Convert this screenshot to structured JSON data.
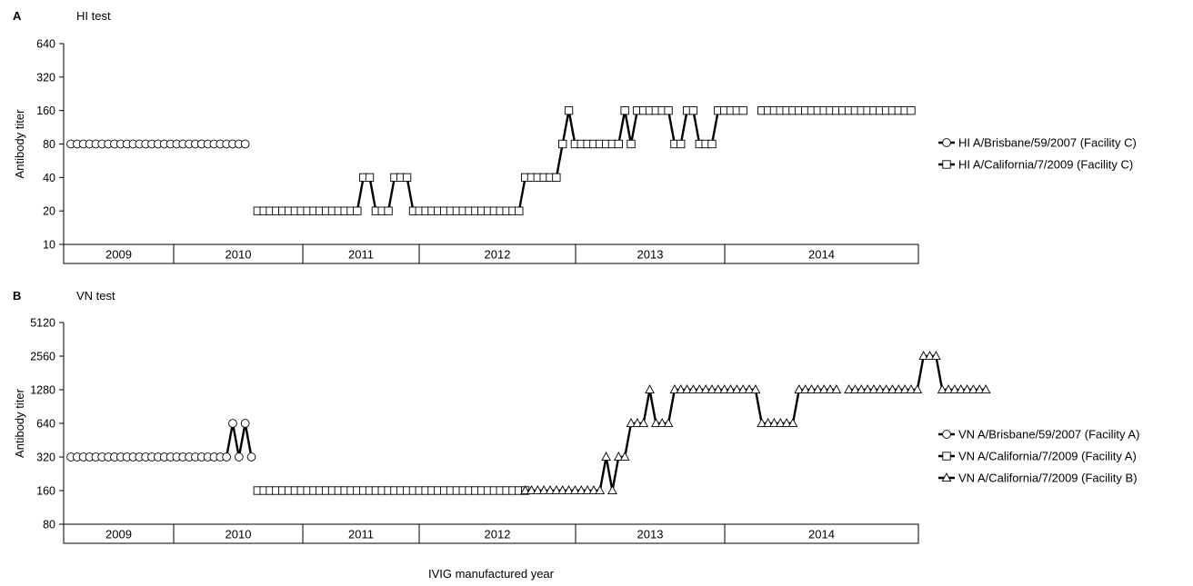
{
  "x_axis_title": "IVIG manufactured year",
  "chart_data": [
    {
      "type": "line",
      "panel": "A",
      "title": "HI test",
      "ylabel": "Antibody titer",
      "yscale": "log2",
      "ylim": [
        10,
        640
      ],
      "yticks": [
        "10",
        "20",
        "40",
        "80",
        "160",
        "320",
        "640"
      ],
      "year_labels": [
        "2009",
        "2010",
        "2011",
        "2012",
        "2013",
        "2014"
      ],
      "series": [
        {
          "name": "HI A/Brisbane/59/2007 (Facility C)",
          "marker": "circle",
          "segments": [
            {
              "start": 0,
              "values": [
                80,
                80,
                80,
                80,
                80,
                80,
                80,
                80,
                80,
                80,
                80,
                80,
                80,
                80,
                80,
                80,
                80,
                80,
                80,
                80,
                80,
                80,
                80,
                80,
                80,
                80,
                80,
                80,
                80
              ]
            }
          ]
        },
        {
          "name": "HI A/California/7/2009 (Facility C)",
          "marker": "square",
          "segments": [
            {
              "start": 30,
              "values": [
                20,
                20,
                20,
                20,
                20,
                20,
                20,
                20,
                20,
                20,
                20,
                20,
                20,
                20,
                20,
                20,
                20,
                40,
                40,
                20,
                20,
                20,
                40,
                40,
                40,
                20,
                20,
                20,
                20,
                20,
                20,
                20,
                20,
                20,
                20,
                20,
                20,
                20,
                20,
                20,
                20,
                20,
                20,
                40,
                40,
                40,
                40,
                40,
                40,
                80,
                160,
                80,
                80,
                80,
                80,
                80,
                80,
                80,
                80,
                160,
                80,
                160,
                160,
                160,
                160,
                160,
                160,
                80,
                80,
                160,
                160,
                80,
                80,
                80,
                160,
                160,
                160,
                160,
                160
              ]
            },
            {
              "start": 111,
              "values": [
                160,
                160,
                160,
                160,
                160,
                160,
                160,
                160,
                160,
                160,
                160,
                160,
                160,
                160,
                160,
                160,
                160,
                160,
                160,
                160,
                160,
                160,
                160,
                160,
                160
              ]
            }
          ]
        }
      ]
    },
    {
      "type": "line",
      "panel": "B",
      "title": "VN test",
      "ylabel": "Antibody titer",
      "yscale": "log2",
      "ylim": [
        80,
        5120
      ],
      "yticks": [
        "80",
        "160",
        "320",
        "640",
        "1280",
        "2560",
        "5120"
      ],
      "year_labels": [
        "2009",
        "2010",
        "2011",
        "2012",
        "2013",
        "2014"
      ],
      "series": [
        {
          "name": "VN A/Brisbane/59/2007 (Facility A)",
          "marker": "circle",
          "segments": [
            {
              "start": 0,
              "values": [
                320,
                320,
                320,
                320,
                320,
                320,
                320,
                320,
                320,
                320,
                320,
                320,
                320,
                320,
                320,
                320,
                320,
                320,
                320,
                320,
                320,
                320,
                320,
                320,
                320,
                320,
                640,
                320,
                640,
                320
              ]
            }
          ]
        },
        {
          "name": "VN A/California/7/2009 (Facility A)",
          "marker": "square",
          "segments": [
            {
              "start": 30,
              "values": [
                160,
                160,
                160,
                160,
                160,
                160,
                160,
                160,
                160,
                160,
                160,
                160,
                160,
                160,
                160,
                160,
                160,
                160,
                160,
                160,
                160,
                160,
                160,
                160,
                160,
                160,
                160,
                160,
                160,
                160,
                160,
                160,
                160,
                160,
                160,
                160,
                160,
                160,
                160,
                160,
                160,
                160,
                160,
                160
              ]
            }
          ]
        },
        {
          "name": "VN A/California/7/2009 (Facility B)",
          "marker": "triangle",
          "segments": [
            {
              "start": 73,
              "values": [
                160,
                160,
                160,
                160,
                160,
                160,
                160,
                160,
                160,
                160,
                160,
                160,
                160,
                320,
                160,
                320,
                320,
                640,
                640,
                640,
                1280,
                640,
                640,
                640,
                1280,
                1280,
                1280,
                1280,
                1280,
                1280,
                1280,
                1280,
                1280,
                1280,
                1280,
                1280,
                1280,
                1280,
                640,
                640,
                640,
                640,
                640,
                640,
                1280,
                1280,
                1280,
                1280,
                1280,
                1280,
                1280
              ]
            },
            {
              "start": 125,
              "values": [
                1280,
                1280,
                1280,
                1280,
                1280,
                1280,
                1280,
                1280,
                1280,
                1280,
                1280,
                1280,
                2560,
                2560,
                2560,
                1280,
                1280,
                1280,
                1280,
                1280,
                1280,
                1280,
                1280
              ]
            }
          ]
        }
      ]
    }
  ]
}
